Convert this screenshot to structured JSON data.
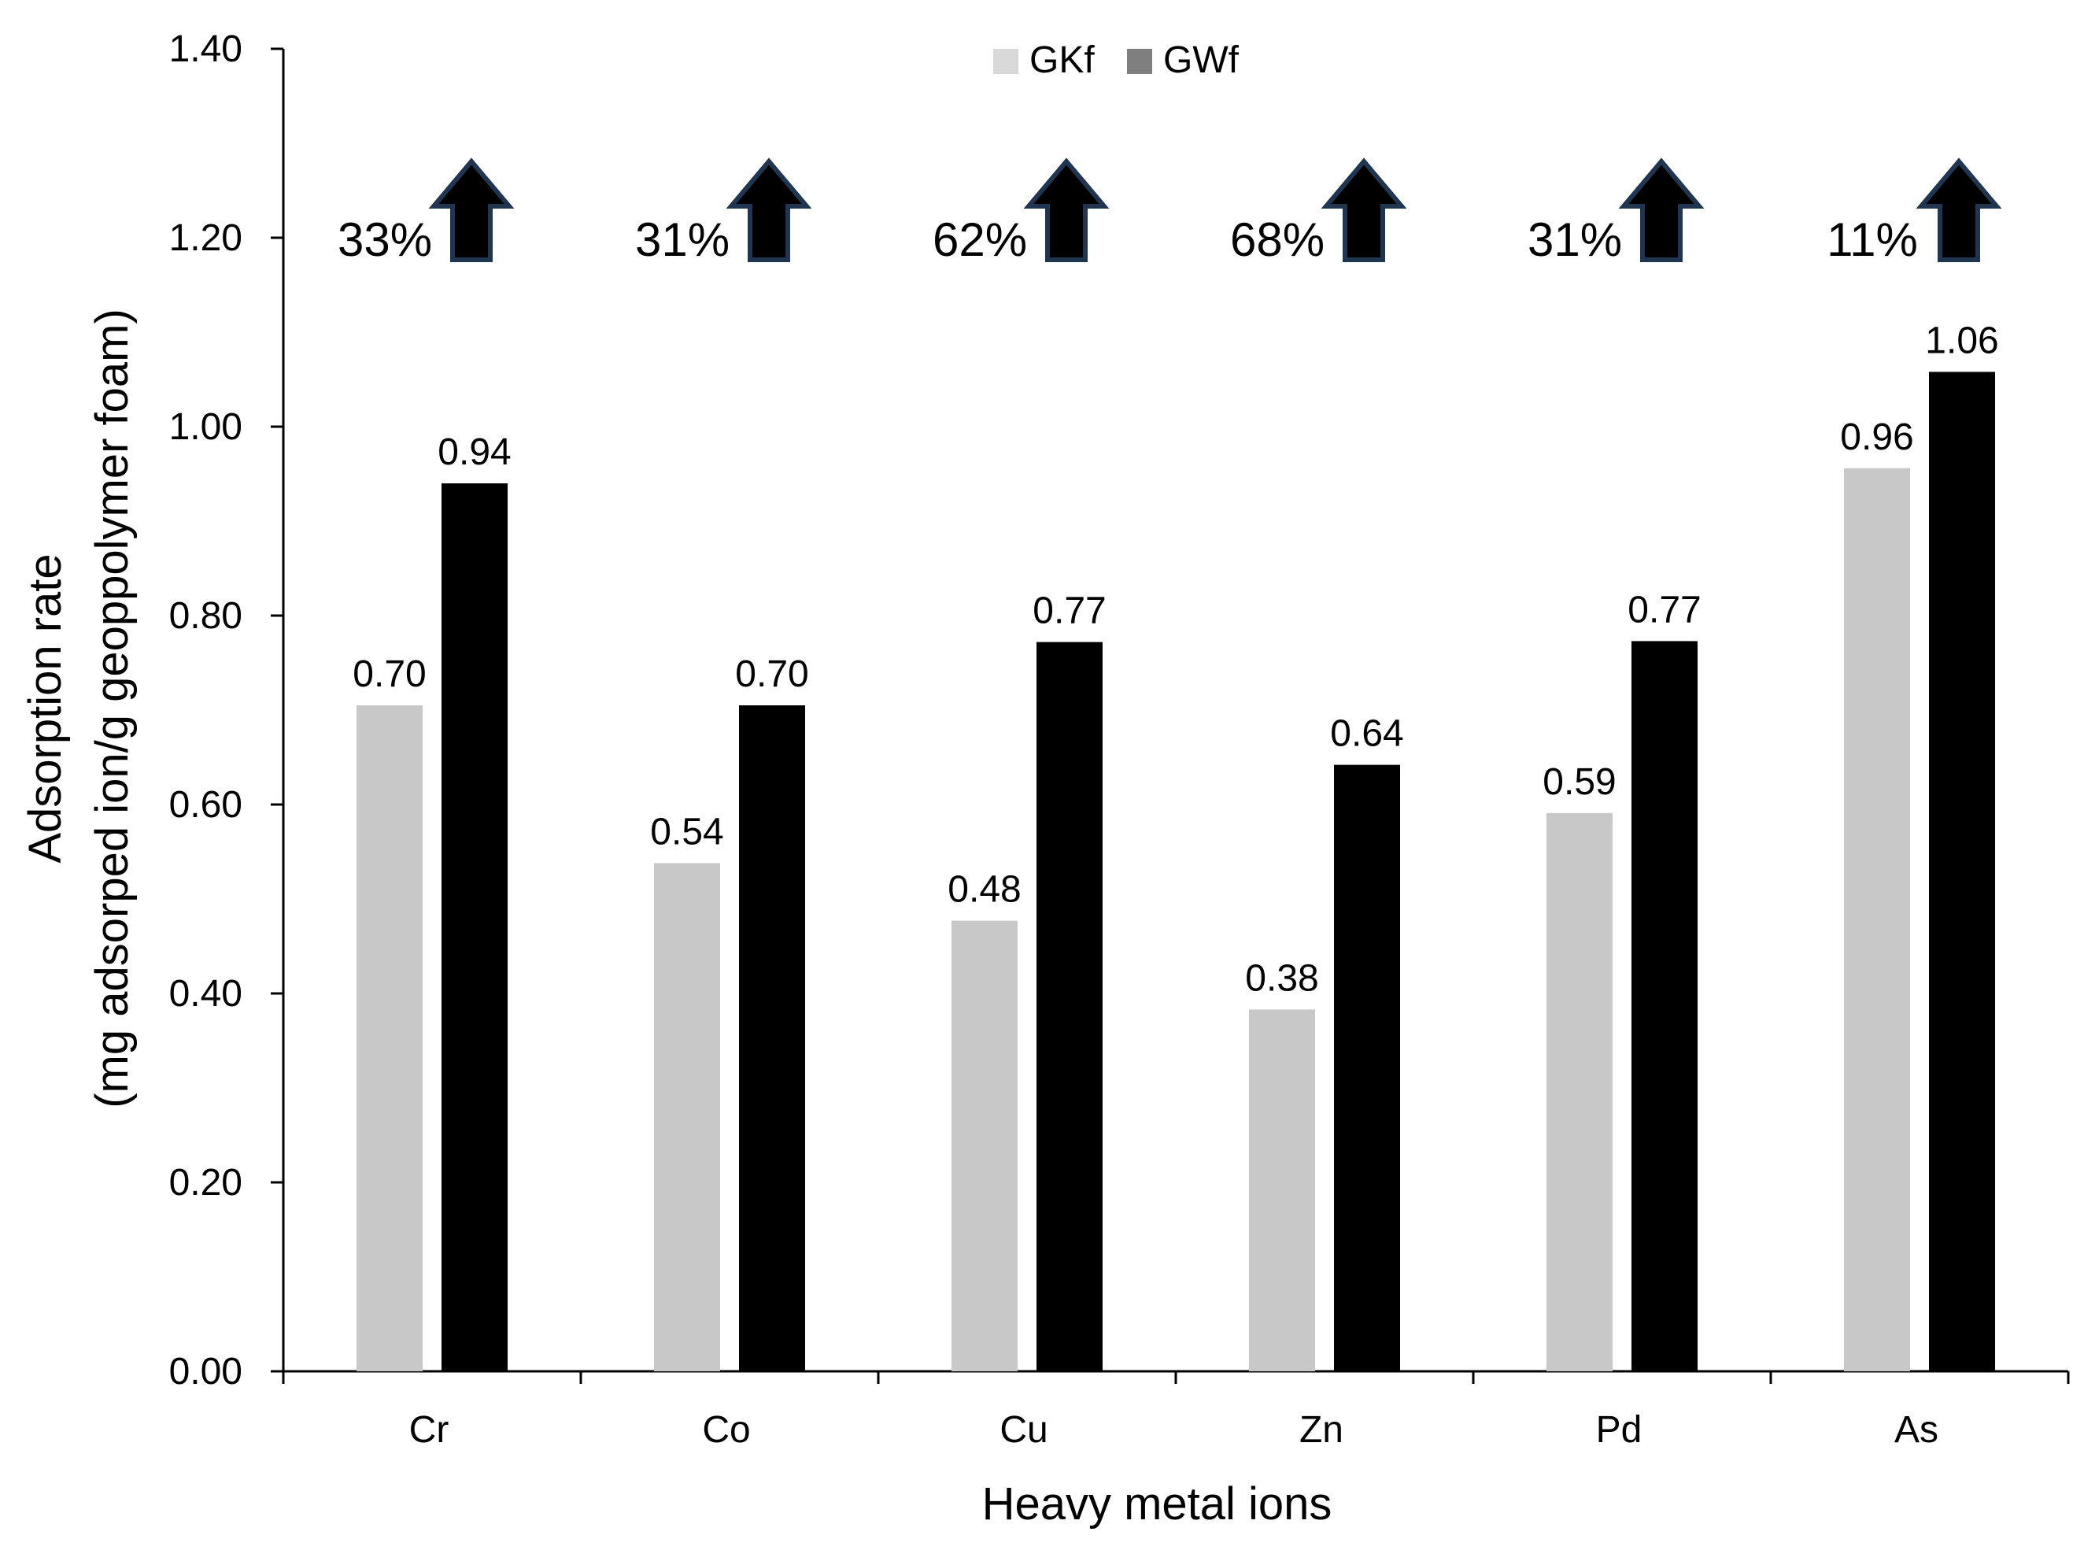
{
  "chart_data": {
    "type": "bar",
    "title": "",
    "xlabel": "Heavy metal ions",
    "ylabel_line1": "Adsorption rate",
    "ylabel_line2": "(mg adsorped ion/g geoppolymer foam)",
    "ylim": [
      0,
      1.4
    ],
    "yticks": [
      "0.00",
      "0.20",
      "0.40",
      "0.60",
      "0.80",
      "1.00",
      "1.20",
      "1.40"
    ],
    "categories": [
      "Cr",
      "Co",
      "Cu",
      "Zn",
      "Pd",
      "As"
    ],
    "series": [
      {
        "name": "GKf",
        "color": "#c8c8c8",
        "values": [
          0.705,
          0.538,
          0.477,
          0.383,
          0.591,
          0.956
        ],
        "labels": [
          "0.70",
          "0.54",
          "0.48",
          "0.38",
          "0.59",
          "0.96"
        ]
      },
      {
        "name": "GWf",
        "color": "#000000",
        "values": [
          0.94,
          0.705,
          0.772,
          0.642,
          0.773,
          1.058
        ],
        "labels": [
          "0.94",
          "0.70",
          "0.77",
          "0.64",
          "0.77",
          "1.06"
        ]
      }
    ],
    "increase_labels": [
      "33%",
      "31%",
      "62%",
      "68%",
      "31%",
      "11%"
    ],
    "legend_position": "top-center",
    "legend_swatch_colors": [
      "#d9d9d9",
      "#7f7f7f"
    ],
    "arrow_color": "#000000",
    "arrow_outline_color": "#1f3550",
    "grid": false
  }
}
